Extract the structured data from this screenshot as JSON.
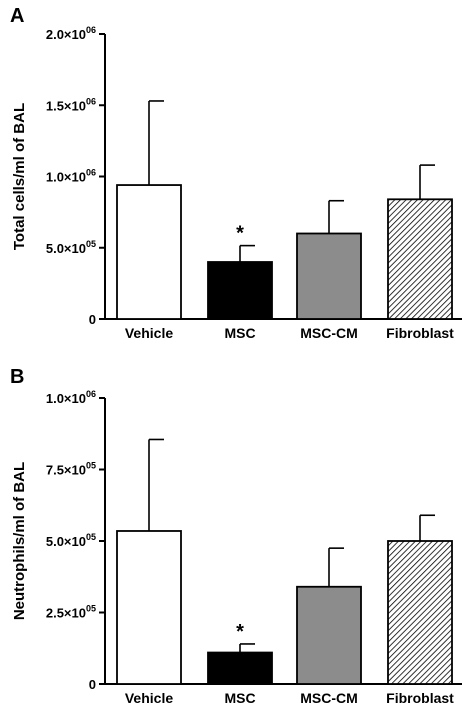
{
  "chart_data": [
    {
      "panel": "A",
      "type": "bar",
      "ylabel": "Total cells/ml of BAL",
      "ylim": [
        0,
        2000000
      ],
      "yticks": [
        {
          "value": 0,
          "mantissa": "0",
          "exp": ""
        },
        {
          "value": 500000,
          "mantissa": "5.0×10",
          "exp": "05"
        },
        {
          "value": 1000000,
          "mantissa": "1.0×10",
          "exp": "06"
        },
        {
          "value": 1500000,
          "mantissa": "1.5×10",
          "exp": "06"
        },
        {
          "value": 2000000,
          "mantissa": "2.0×10",
          "exp": "06"
        }
      ],
      "categories": [
        "Vehicle",
        "MSC",
        "MSC-CM",
        "Fibroblast"
      ],
      "values": [
        940000,
        400000,
        600000,
        840000
      ],
      "errors": [
        590000,
        115000,
        230000,
        240000
      ],
      "fills": [
        "white",
        "black",
        "gray",
        "hatched"
      ],
      "significance": [
        "",
        "*",
        "",
        ""
      ]
    },
    {
      "panel": "B",
      "type": "bar",
      "ylabel": "Neutrophils/ml of BAL",
      "ylim": [
        0,
        1000000
      ],
      "yticks": [
        {
          "value": 0,
          "mantissa": "0",
          "exp": ""
        },
        {
          "value": 250000,
          "mantissa": "2.5×10",
          "exp": "05"
        },
        {
          "value": 500000,
          "mantissa": "5.0×10",
          "exp": "05"
        },
        {
          "value": 750000,
          "mantissa": "7.5×10",
          "exp": "05"
        },
        {
          "value": 1000000,
          "mantissa": "1.0×10",
          "exp": "06"
        }
      ],
      "categories": [
        "Vehicle",
        "MSC",
        "MSC-CM",
        "Fibroblast"
      ],
      "values": [
        535000,
        110000,
        340000,
        500000
      ],
      "errors": [
        320000,
        30000,
        135000,
        90000
      ],
      "fills": [
        "white",
        "black",
        "gray",
        "hatched"
      ],
      "significance": [
        "",
        "*",
        "",
        ""
      ]
    }
  ],
  "colors": {
    "white": "#ffffff",
    "black": "#000000",
    "gray": "#8c8c8c",
    "axis": "#000000"
  }
}
